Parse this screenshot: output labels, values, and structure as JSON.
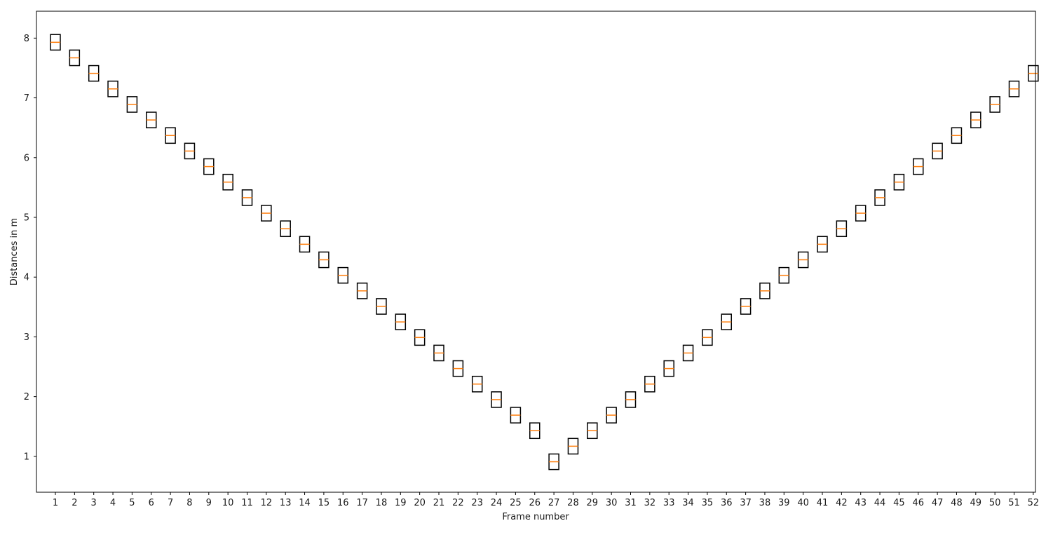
{
  "chart_data": {
    "type": "box",
    "title": "",
    "xlabel": "Frame number",
    "ylabel": "Distances in m",
    "ylim": [
      0.4,
      8.45
    ],
    "yticks": [
      1,
      2,
      3,
      4,
      5,
      6,
      7,
      8
    ],
    "categories": [
      "1",
      "2",
      "3",
      "4",
      "5",
      "6",
      "7",
      "8",
      "9",
      "10",
      "11",
      "12",
      "13",
      "14",
      "15",
      "16",
      "17",
      "18",
      "19",
      "20",
      "21",
      "22",
      "23",
      "24",
      "25",
      "26",
      "27",
      "28",
      "29",
      "30",
      "31",
      "32",
      "33",
      "34",
      "35",
      "36",
      "37",
      "38",
      "39",
      "40",
      "41",
      "42",
      "43",
      "44",
      "45",
      "46",
      "47",
      "48",
      "49",
      "50",
      "51",
      "52"
    ],
    "medians": [
      7.93,
      7.67,
      7.41,
      7.15,
      6.89,
      6.63,
      6.37,
      6.11,
      5.85,
      5.59,
      5.33,
      5.07,
      4.81,
      4.55,
      4.29,
      4.03,
      3.77,
      3.51,
      3.25,
      2.99,
      2.73,
      2.47,
      2.21,
      1.95,
      1.69,
      1.43,
      0.91,
      1.17,
      1.43,
      1.69,
      1.95,
      2.21,
      2.47,
      2.73,
      2.99,
      3.25,
      3.51,
      3.77,
      4.03,
      4.29,
      4.55,
      4.81,
      5.07,
      5.33,
      5.59,
      5.85,
      6.11,
      6.37,
      6.63,
      6.89,
      7.15,
      7.41
    ],
    "box_half_range": 0.13,
    "colors": {
      "box": "#000000",
      "median": "#ff7f0e"
    },
    "grid": false,
    "legend": "none"
  }
}
